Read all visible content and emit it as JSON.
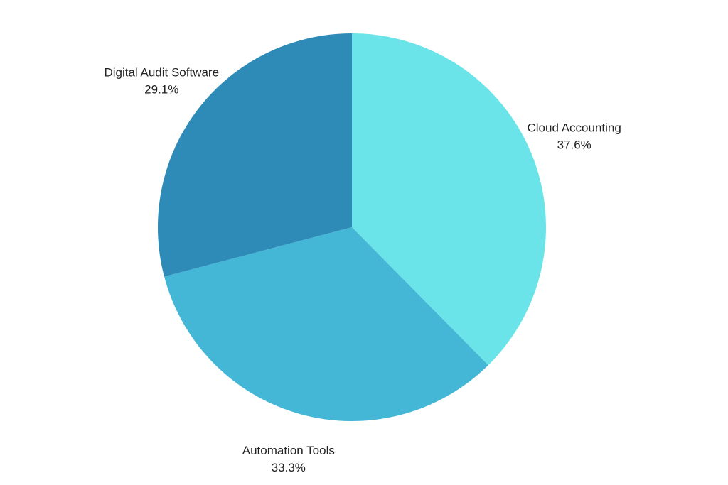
{
  "chart_data": {
    "type": "pie",
    "title": "",
    "start_angle_deg": 0,
    "direction": "clockwise",
    "slices": [
      {
        "name": "Cloud Accounting",
        "value": 37.6,
        "label": "37.6%",
        "color": "#6ae4e8"
      },
      {
        "name": "Automation Tools",
        "value": 33.3,
        "label": "33.3%",
        "color": "#45b7d6"
      },
      {
        "name": "Digital Audit Software",
        "value": 29.1,
        "label": "29.1%",
        "color": "#2e8bb8"
      }
    ]
  }
}
